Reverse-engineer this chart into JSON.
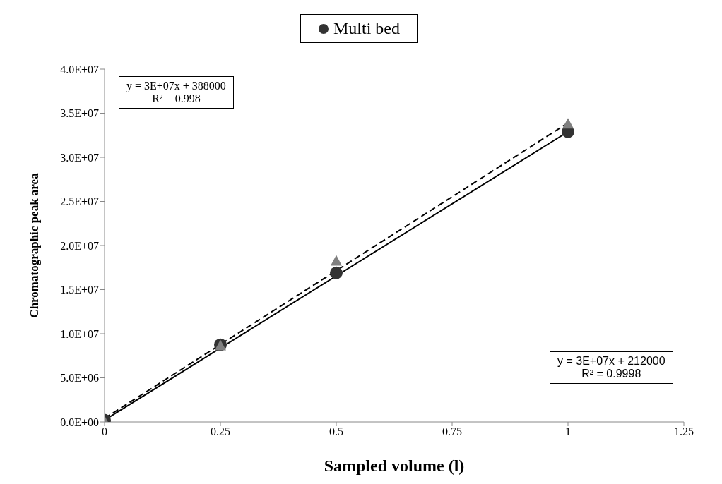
{
  "chart_data": {
    "type": "scatter",
    "xlabel": "Sampled volume (l)",
    "ylabel": "Chromatographic peak area",
    "xlim": [
      0,
      1.25
    ],
    "xticks": [
      0,
      0.25,
      0.5,
      0.75,
      1,
      1.25
    ],
    "ylim": [
      0,
      40000000
    ],
    "yticks": [
      {
        "value": 0,
        "label": "0.0E+00"
      },
      {
        "value": 5000000,
        "label": "5.0E+06"
      },
      {
        "value": 10000000,
        "label": "1.0E+07"
      },
      {
        "value": 15000000,
        "label": "1.5E+07"
      },
      {
        "value": 20000000,
        "label": "2.0E+07"
      },
      {
        "value": 25000000,
        "label": "2.5E+07"
      },
      {
        "value": 30000000,
        "label": "3.0E+07"
      },
      {
        "value": 35000000,
        "label": "3.5E+07"
      },
      {
        "value": 40000000,
        "label": "4.0E+07"
      }
    ],
    "grid": false,
    "legend": "top",
    "series": [
      {
        "type": "line",
        "color": "#000000",
        "line_style": "solid",
        "marker": "none",
        "x": [
          0,
          1
        ],
        "values": [
          200000,
          32900000
        ]
      },
      {
        "type": "line",
        "color": "#000000",
        "line_style": "dashed",
        "marker": "none",
        "x": [
          0,
          1
        ],
        "values": [
          400000,
          33900000
        ]
      },
      {
        "name": "Multi bed",
        "color": "#333333",
        "marker": "circle",
        "x": [
          0,
          0.25,
          0.5,
          1
        ],
        "values": [
          200000,
          8750000,
          16900000,
          32900000
        ]
      },
      {
        "color": "#808080",
        "marker": "triangle",
        "x": [
          0,
          0.25,
          0.5,
          1
        ],
        "values": [
          0,
          8600000,
          18200000,
          33750000
        ]
      }
    ],
    "annotations": [
      "y = 3E+07x + 388000\nR² = 0.998",
      "y = 3E+07x + 212000\nR² = 0.9998"
    ]
  }
}
